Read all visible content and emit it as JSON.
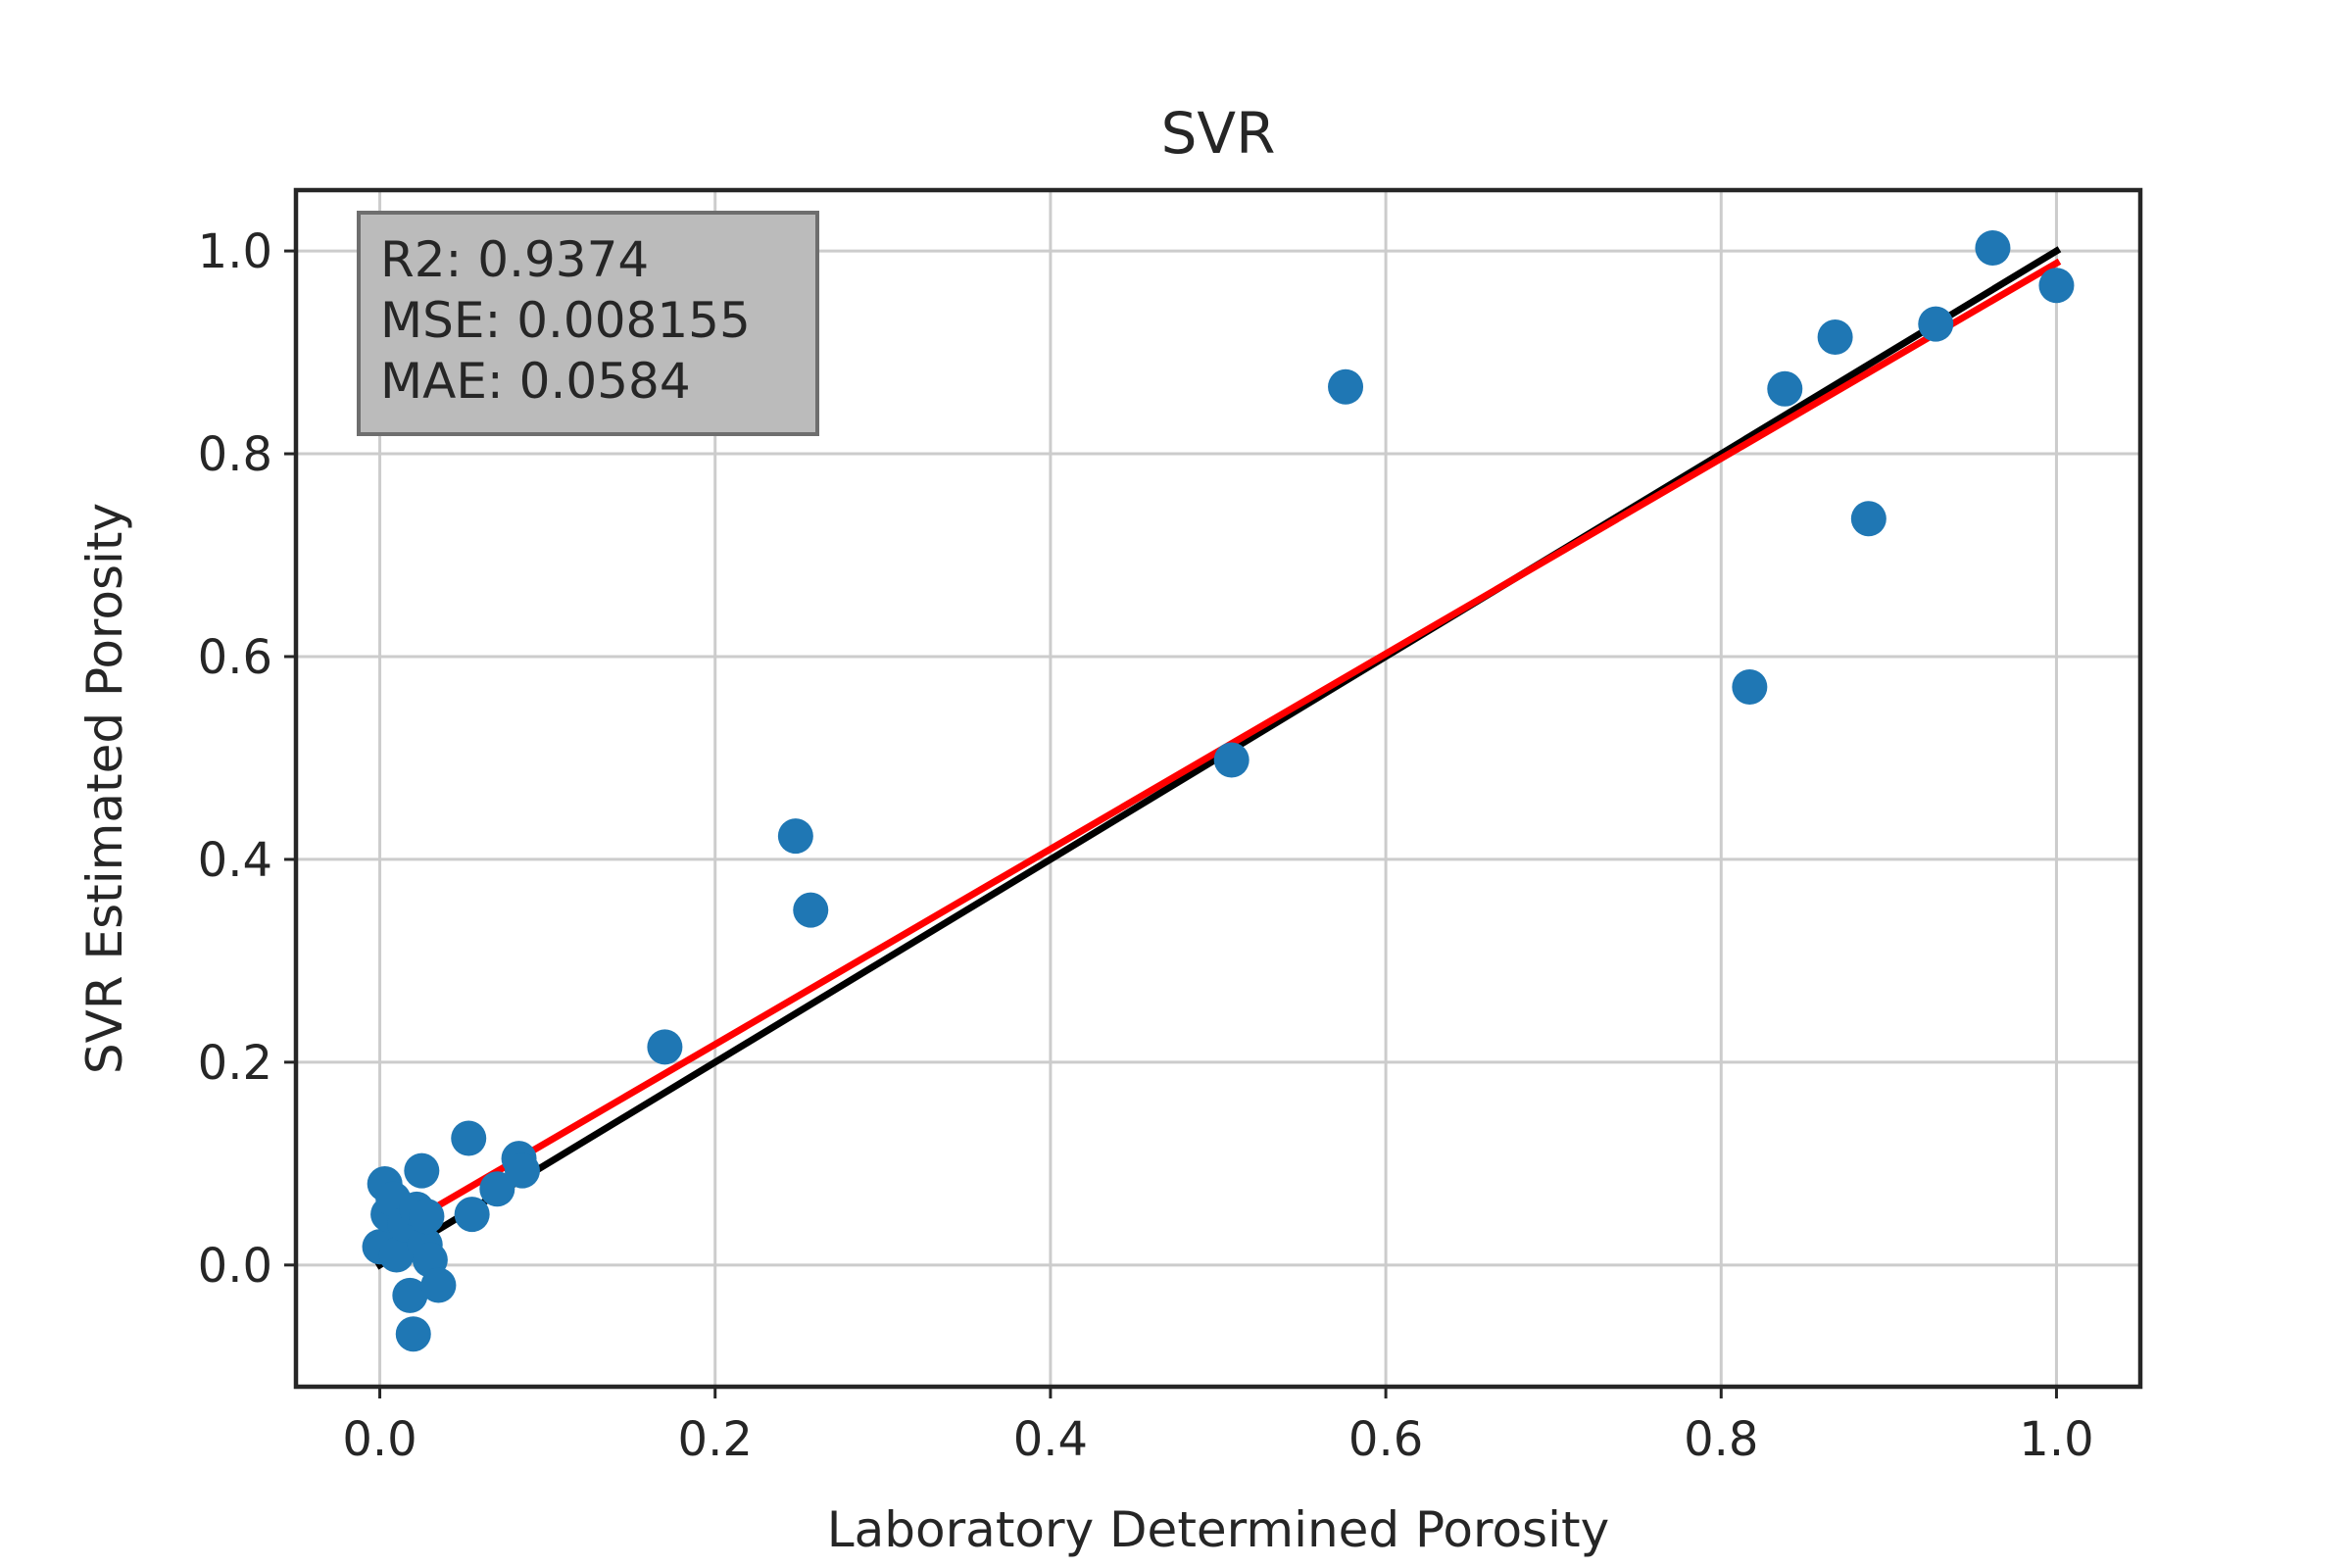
{
  "chart_data": {
    "type": "scatter",
    "title": "SVR",
    "xlabel": "Laboratory Determined Porosity",
    "ylabel": "SVR Estimated Porosity",
    "xlim": [
      -0.05,
      1.05
    ],
    "ylim": [
      -0.12,
      1.06
    ],
    "xticks": [
      0.0,
      0.2,
      0.4,
      0.6,
      0.8,
      1.0
    ],
    "yticks": [
      0.0,
      0.2,
      0.4,
      0.6,
      0.8,
      1.0
    ],
    "xtick_labels": [
      "0.0",
      "0.2",
      "0.4",
      "0.6",
      "0.8",
      "1.0"
    ],
    "ytick_labels": [
      "0.0",
      "0.2",
      "0.4",
      "0.6",
      "0.8",
      "1.0"
    ],
    "grid": true,
    "stats": {
      "r2": "R2: 0.9374",
      "mse": "MSE: 0.008155",
      "mae": "MAE: 0.0584"
    },
    "stats_box_position": "top-left",
    "point_color": "#1f77b4",
    "points": [
      {
        "x": 0.0,
        "y": 0.018
      },
      {
        "x": 0.003,
        "y": 0.08
      },
      {
        "x": 0.005,
        "y": 0.05
      },
      {
        "x": 0.008,
        "y": 0.065
      },
      {
        "x": 0.01,
        "y": 0.01
      },
      {
        "x": 0.015,
        "y": 0.04
      },
      {
        "x": 0.018,
        "y": -0.03
      },
      {
        "x": 0.02,
        "y": -0.068
      },
      {
        "x": 0.022,
        "y": 0.055
      },
      {
        "x": 0.025,
        "y": 0.093
      },
      {
        "x": 0.027,
        "y": 0.02
      },
      {
        "x": 0.028,
        "y": 0.048
      },
      {
        "x": 0.03,
        "y": 0.005
      },
      {
        "x": 0.035,
        "y": -0.02
      },
      {
        "x": 0.053,
        "y": 0.125
      },
      {
        "x": 0.055,
        "y": 0.05
      },
      {
        "x": 0.07,
        "y": 0.075
      },
      {
        "x": 0.083,
        "y": 0.105
      },
      {
        "x": 0.085,
        "y": 0.093
      },
      {
        "x": 0.17,
        "y": 0.215
      },
      {
        "x": 0.248,
        "y": 0.423
      },
      {
        "x": 0.257,
        "y": 0.35
      },
      {
        "x": 0.508,
        "y": 0.498
      },
      {
        "x": 0.576,
        "y": 0.866
      },
      {
        "x": 0.817,
        "y": 0.57
      },
      {
        "x": 0.838,
        "y": 0.864
      },
      {
        "x": 0.868,
        "y": 0.915
      },
      {
        "x": 0.888,
        "y": 0.736
      },
      {
        "x": 0.928,
        "y": 0.928
      },
      {
        "x": 0.962,
        "y": 1.003
      },
      {
        "x": 1.0,
        "y": 0.966
      }
    ],
    "lines": [
      {
        "x": [
          0.0,
          1.0
        ],
        "y": [
          0.0,
          1.0
        ],
        "color": "#000000"
      },
      {
        "x": [
          0.0,
          1.0
        ],
        "y": [
          0.025,
          0.988
        ],
        "color": "#ff0000"
      }
    ]
  }
}
